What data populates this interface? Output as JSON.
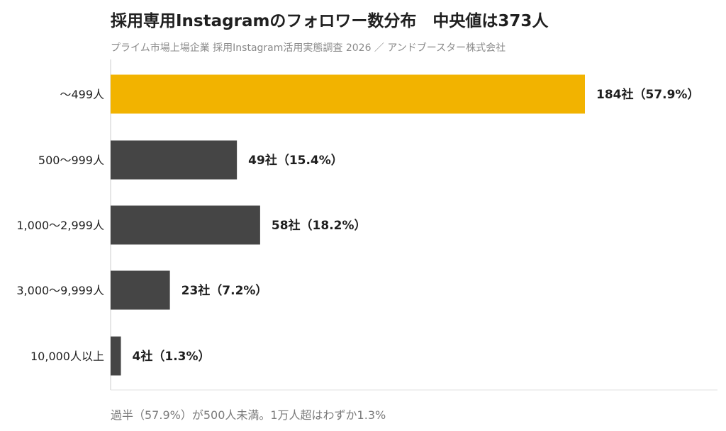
{
  "header": {
    "title": "採用専用Instagramのフォロワー数分布　中央値は373人",
    "subtitle": "プライム市場上場企業 採用Instagram活用実態調査 2026 ／ アンドブースター株式会社"
  },
  "footnote": "過半（57.9%）が500人未満。1万人超はわずか1.3%",
  "colors": {
    "highlight": "#F2B300",
    "bar": "#454545",
    "axis": "#cccccc",
    "gridline": "#e0e0e0"
  },
  "chart_data": {
    "type": "bar",
    "orientation": "horizontal",
    "title": "採用専用Instagramのフォロワー数分布　中央値は373人",
    "subtitle": "プライム市場上場企業 採用Instagram活用実態調査 2026 ／ アンドブースター株式会社",
    "categories": [
      "〜499人",
      "500〜999人",
      "1,000〜2,999人",
      "3,000〜9,999人",
      "10,000人以上"
    ],
    "values": [
      184,
      49,
      58,
      23,
      4
    ],
    "percentages": [
      57.9,
      15.4,
      18.2,
      7.2,
      1.3
    ],
    "data_labels": [
      "184社（57.9%）",
      "49社（15.4%）",
      "58社（18.2%）",
      "23社（7.2%）",
      "4社（1.3%）"
    ],
    "highlight_index": 0,
    "xlim": [
      0,
      217
    ],
    "grid": false,
    "legend": "none"
  }
}
